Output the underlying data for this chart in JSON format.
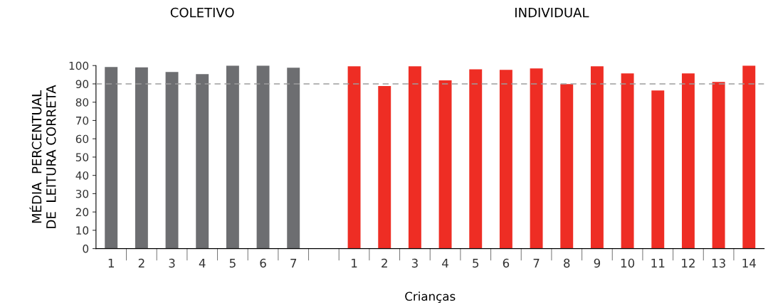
{
  "chart_data": {
    "type": "bar",
    "categories": [
      "1",
      "2",
      "3",
      "4",
      "5",
      "6",
      "7",
      null,
      "1",
      "2",
      "3",
      "4",
      "5",
      "6",
      "7",
      "8",
      "9",
      "10",
      "11",
      "12",
      "13",
      "14"
    ],
    "values": [
      99.2,
      99,
      96.5,
      95.3,
      100,
      100,
      98.8,
      null,
      99.6,
      88.8,
      99.6,
      91.9,
      98,
      97.7,
      98.4,
      89.9,
      99.6,
      95.7,
      86.4,
      95.7,
      91.1,
      100
    ],
    "colors": [
      "#6d6e71",
      "#6d6e71",
      "#6d6e71",
      "#6d6e71",
      "#6d6e71",
      "#6d6e71",
      "#6d6e71",
      null,
      "#ee2d24",
      "#ee2d24",
      "#ee2d24",
      "#ee2d24",
      "#ee2d24",
      "#ee2d24",
      "#ee2d24",
      "#ee2d24",
      "#ee2d24",
      "#ee2d24",
      "#ee2d24",
      "#ee2d24",
      "#ee2d24",
      "#ee2d24"
    ],
    "ylim": [
      0,
      100
    ],
    "yticks": [
      0,
      10,
      20,
      30,
      40,
      50,
      60,
      70,
      80,
      90,
      100
    ],
    "xlabel": "Crianças",
    "ylabel": "MÉDIA  PERCENTUAL\nDE  LEITURA CORRETA",
    "annotations": [
      "COLETIVO",
      "INDIVIDUAL"
    ],
    "ref_lines": [
      {
        "axis": "y",
        "value": 90,
        "color": "#9d9d9d",
        "line_style": "dashed"
      }
    ],
    "grid": false,
    "legend": false
  }
}
